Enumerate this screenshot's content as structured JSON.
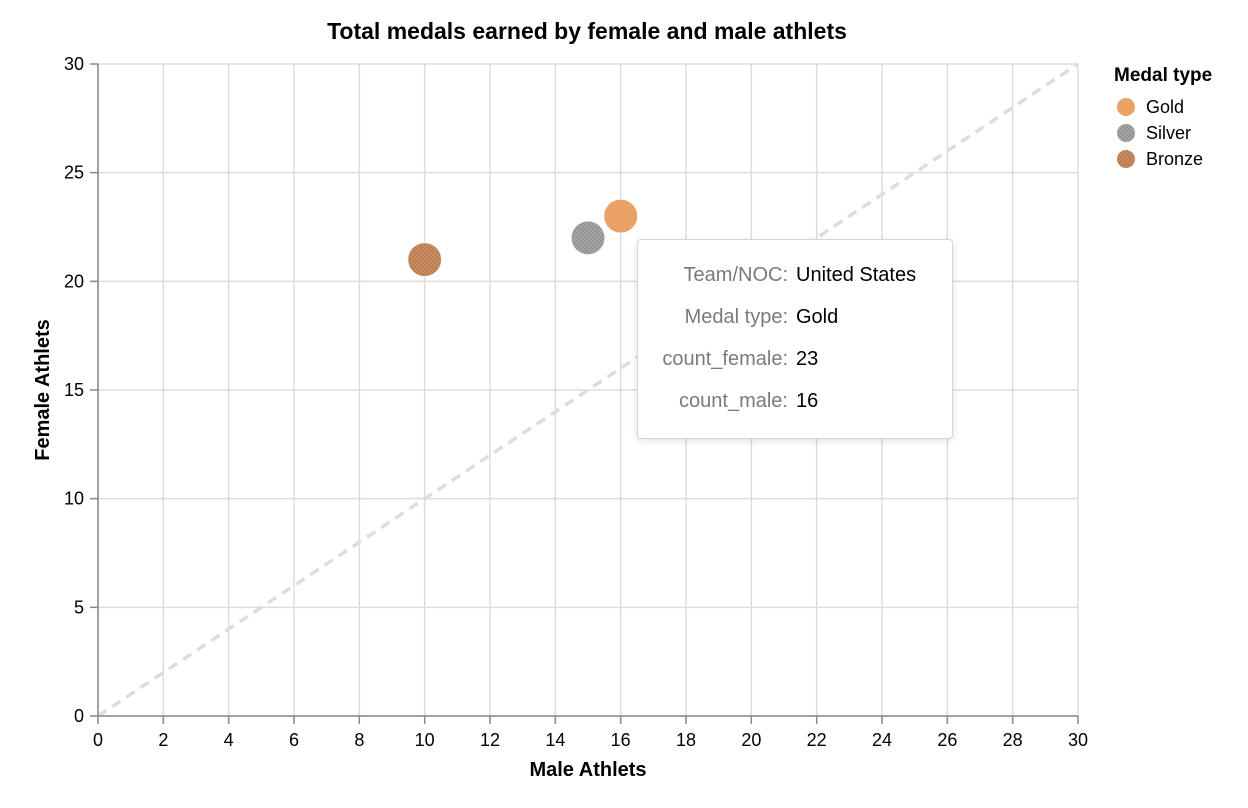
{
  "chart_data": {
    "type": "scatter",
    "title": "Total medals earned by female and male athlets",
    "xlabel": "Male Athlets",
    "ylabel": "Female Athlets",
    "xlim": [
      0,
      30
    ],
    "ylim": [
      0,
      30
    ],
    "x_ticks": [
      "0",
      "2",
      "4",
      "6",
      "8",
      "10",
      "12",
      "14",
      "16",
      "18",
      "20",
      "22",
      "24",
      "26",
      "28",
      "30"
    ],
    "y_ticks": [
      "0",
      "5",
      "10",
      "15",
      "20",
      "25",
      "30"
    ],
    "grid": true,
    "reference_line": {
      "style": "dashed",
      "color": "#dddddd",
      "from": [
        0,
        0
      ],
      "to": [
        30,
        30
      ]
    },
    "legend": {
      "title": "Medal type",
      "placement": "right",
      "items": [
        {
          "label": "Gold",
          "color": "#e9a166"
        },
        {
          "label": "Silver",
          "color": "#a3a3a3"
        },
        {
          "label": "Bronze",
          "color": "#c98c5f"
        }
      ]
    },
    "points": [
      {
        "medal": "Bronze",
        "x": 10,
        "y": 21,
        "color": "#c98c5f"
      },
      {
        "medal": "Silver",
        "x": 15,
        "y": 22,
        "color": "#a3a3a3"
      },
      {
        "medal": "Gold",
        "x": 16,
        "y": 23,
        "color": "#e9a166"
      }
    ]
  },
  "tooltip": {
    "rows": [
      {
        "key": "Team/NOC:",
        "value": "United States"
      },
      {
        "key": "Medal type:",
        "value": "Gold"
      },
      {
        "key": "count_female:",
        "value": "23"
      },
      {
        "key": "count_male:",
        "value": "16"
      }
    ]
  }
}
